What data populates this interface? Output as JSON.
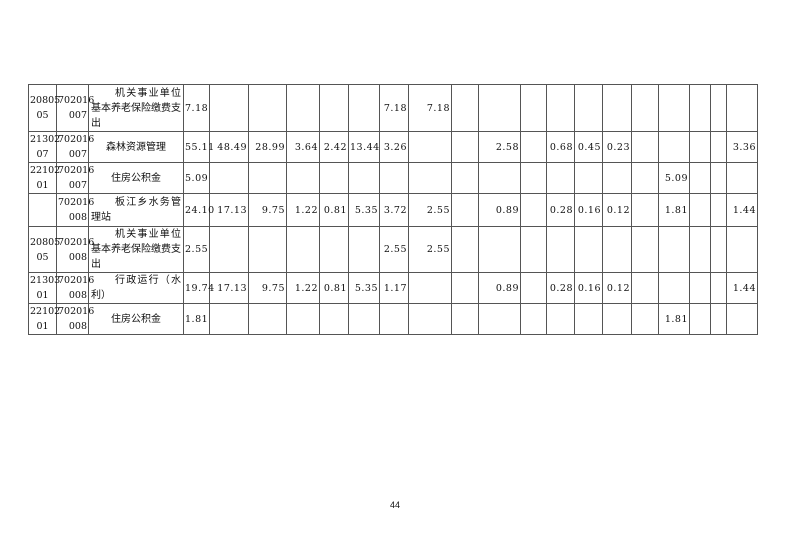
{
  "rows": [
    {
      "code1": [
        "20805",
        "05"
      ],
      "code2": [
        "702016",
        "007"
      ],
      "name": "机关事业单位基本养老保险缴费支出",
      "cells": [
        "7.18",
        "",
        "",
        "",
        "",
        "",
        "7.18",
        "7.18",
        "",
        "",
        "",
        "",
        "",
        "",
        "",
        "",
        "",
        "",
        ""
      ]
    },
    {
      "code1": [
        "21302",
        "07"
      ],
      "code2": [
        "702016",
        "007"
      ],
      "name": "森林资源管理",
      "cells": [
        "55.11",
        "48.49",
        "28.99",
        "3.64",
        "2.42",
        "13.44",
        "3.26",
        "",
        "",
        "2.58",
        "",
        "0.68",
        "0.45",
        "0.23",
        "",
        "",
        "",
        "",
        "3.36"
      ]
    },
    {
      "code1": [
        "22102",
        "01"
      ],
      "code2": [
        "702016",
        "007"
      ],
      "name": "住房公积金",
      "cells": [
        "5.09",
        "",
        "",
        "",
        "",
        "",
        "",
        "",
        "",
        "",
        "",
        "",
        "",
        "",
        "",
        "5.09",
        "",
        "",
        ""
      ]
    },
    {
      "code1": [
        "",
        ""
      ],
      "code2": [
        "702016",
        "008"
      ],
      "name": "板江乡水务管理站",
      "cells": [
        "24.10",
        "17.13",
        "9.75",
        "1.22",
        "0.81",
        "5.35",
        "3.72",
        "2.55",
        "",
        "0.89",
        "",
        "0.28",
        "0.16",
        "0.12",
        "",
        "1.81",
        "",
        "",
        "1.44"
      ]
    },
    {
      "code1": [
        "20805",
        "05"
      ],
      "code2": [
        "702016",
        "008"
      ],
      "name": "机关事业单位基本养老保险缴费支出",
      "cells": [
        "2.55",
        "",
        "",
        "",
        "",
        "",
        "2.55",
        "2.55",
        "",
        "",
        "",
        "",
        "",
        "",
        "",
        "",
        "",
        "",
        ""
      ]
    },
    {
      "code1": [
        "21303",
        "01"
      ],
      "code2": [
        "702016",
        "008"
      ],
      "name": "行政运行（水利）",
      "cells": [
        "19.74",
        "17.13",
        "9.75",
        "1.22",
        "0.81",
        "5.35",
        "1.17",
        "",
        "",
        "0.89",
        "",
        "0.28",
        "0.16",
        "0.12",
        "",
        "",
        "",
        "",
        "1.44"
      ]
    },
    {
      "code1": [
        "22102",
        "01"
      ],
      "code2": [
        "702016",
        "008"
      ],
      "name": "住房公积金",
      "cells": [
        "1.81",
        "",
        "",
        "",
        "",
        "",
        "",
        "",
        "",
        "",
        "",
        "",
        "",
        "",
        "",
        "1.81",
        "",
        "",
        ""
      ]
    }
  ],
  "page_number": "44"
}
